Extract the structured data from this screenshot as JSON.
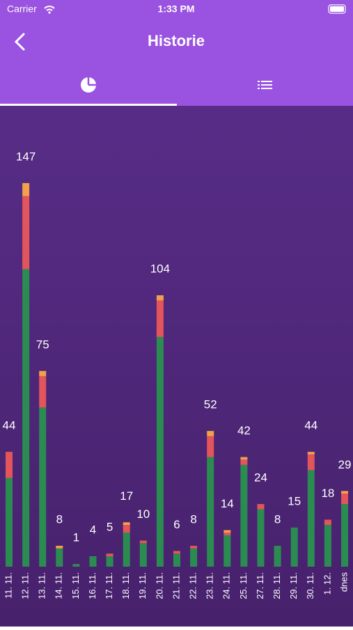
{
  "status_bar": {
    "carrier": "Carrier",
    "time": "1:33 PM"
  },
  "header": {
    "title": "Historie"
  },
  "chart_data": {
    "type": "bar",
    "stacked": true,
    "categories": [
      "11. 11.",
      "12. 11.",
      "13. 11.",
      "14. 11.",
      "15. 11.",
      "16. 11.",
      "17. 11.",
      "18. 11.",
      "19. 11.",
      "20. 11.",
      "21. 11.",
      "22. 11.",
      "23. 11.",
      "24. 11.",
      "25. 11.",
      "27. 11.",
      "28. 11.",
      "29. 11.",
      "30. 11.",
      "1. 12.",
      "dnes"
    ],
    "totals": [
      44,
      147,
      75,
      8,
      1,
      4,
      5,
      17,
      10,
      104,
      6,
      8,
      52,
      14,
      42,
      24,
      8,
      15,
      44,
      18,
      29
    ],
    "series": [
      {
        "color": "#2b8c52",
        "values": [
          34,
          114,
          61,
          7,
          1,
          4,
          4,
          13,
          9,
          88,
          5,
          7,
          42,
          12,
          39,
          22,
          8,
          15,
          37,
          16,
          24
        ]
      },
      {
        "color": "#e2555a",
        "values": [
          10,
          28,
          12,
          0,
          0,
          0,
          1,
          3,
          1,
          14,
          1,
          1,
          8,
          1,
          2,
          2,
          0,
          0,
          6,
          2,
          4
        ]
      },
      {
        "color": "#f2a04a",
        "values": [
          0,
          5,
          2,
          1,
          0,
          0,
          0,
          1,
          0,
          2,
          0,
          0,
          2,
          1,
          1,
          0,
          0,
          0,
          1,
          0,
          1
        ]
      }
    ]
  }
}
